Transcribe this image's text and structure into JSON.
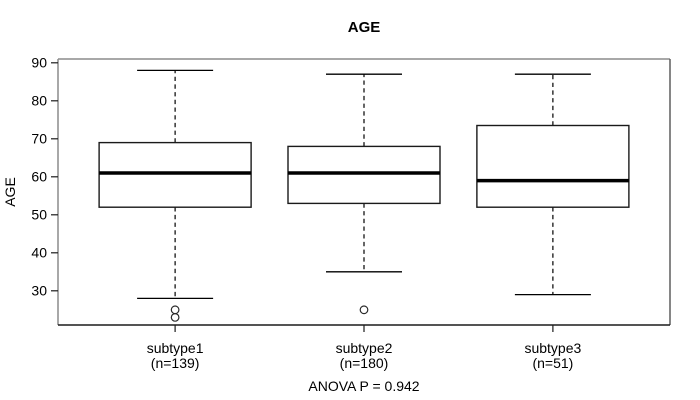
{
  "figure": {
    "title": "AGE",
    "y_axis_label": "AGE",
    "annotation": "ANOVA P = 0.942"
  },
  "chart_data": {
    "type": "boxplot",
    "title": "AGE",
    "xlabel": "",
    "ylabel": "AGE",
    "ylim": [
      21,
      91
    ],
    "yticks": [
      30,
      40,
      50,
      60,
      70,
      80,
      90
    ],
    "grid": false,
    "legend": "none",
    "annotation": "ANOVA P = 0.942",
    "groups": [
      {
        "label": "subtype1",
        "sublabel": "(n=139)",
        "n": 139,
        "whisker_low": 28,
        "q1": 52,
        "median": 61,
        "q3": 69,
        "whisker_high": 88,
        "outliers": [
          25,
          23
        ]
      },
      {
        "label": "subtype2",
        "sublabel": "(n=180)",
        "n": 180,
        "whisker_low": 35,
        "q1": 53,
        "median": 61,
        "q3": 68,
        "whisker_high": 87,
        "outliers": [
          25
        ]
      },
      {
        "label": "subtype3",
        "sublabel": "(n=51)",
        "n": 51,
        "whisker_low": 29,
        "q1": 52,
        "median": 59,
        "q3": 73.5,
        "whisker_high": 87,
        "outliers": []
      }
    ],
    "colors": {
      "box_fill": "#ffffff",
      "data_stroke": "#000000",
      "frame_stroke": "#8c8c8c",
      "text": "#000000",
      "background": "#ffffff"
    }
  }
}
